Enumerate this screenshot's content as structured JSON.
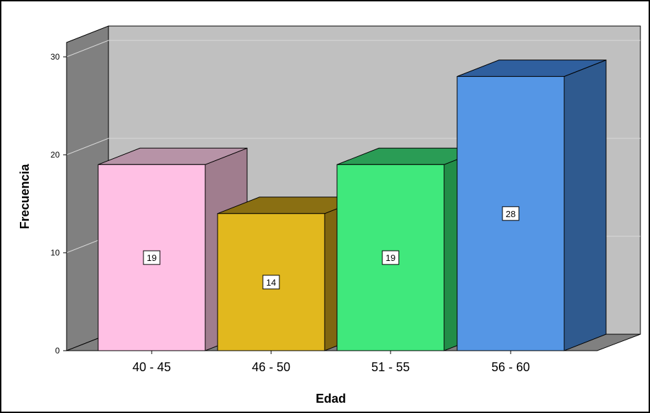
{
  "chart_data": {
    "type": "bar",
    "categories": [
      "40 - 45",
      "46 - 50",
      "51 - 55",
      "56 - 60"
    ],
    "values": [
      19,
      14,
      19,
      28
    ],
    "data_labels": [
      "19",
      "14",
      "19",
      "28"
    ],
    "xlabel": "Edad",
    "ylabel": "Frecuencia",
    "ylim": [
      0,
      30
    ],
    "yticks": [
      0,
      10,
      20,
      30
    ],
    "ytick_labels": [
      "0",
      "10",
      "20",
      "30"
    ],
    "grid": true,
    "style": "3d-bar",
    "colors": {
      "front": [
        "#ffc0e4",
        "#e1b81e",
        "#40e87c",
        "#5596e5"
      ],
      "top": [
        "#b793a7",
        "#8a6f12",
        "#2a9c55",
        "#2f5f9e"
      ],
      "side": [
        "#a07d8e",
        "#806610",
        "#228d48",
        "#2f5a8f"
      ],
      "back_wall": "#c0c0c0",
      "side_wall": "#808080",
      "floor": "#808080",
      "gridline": "#d9d9d9"
    }
  }
}
